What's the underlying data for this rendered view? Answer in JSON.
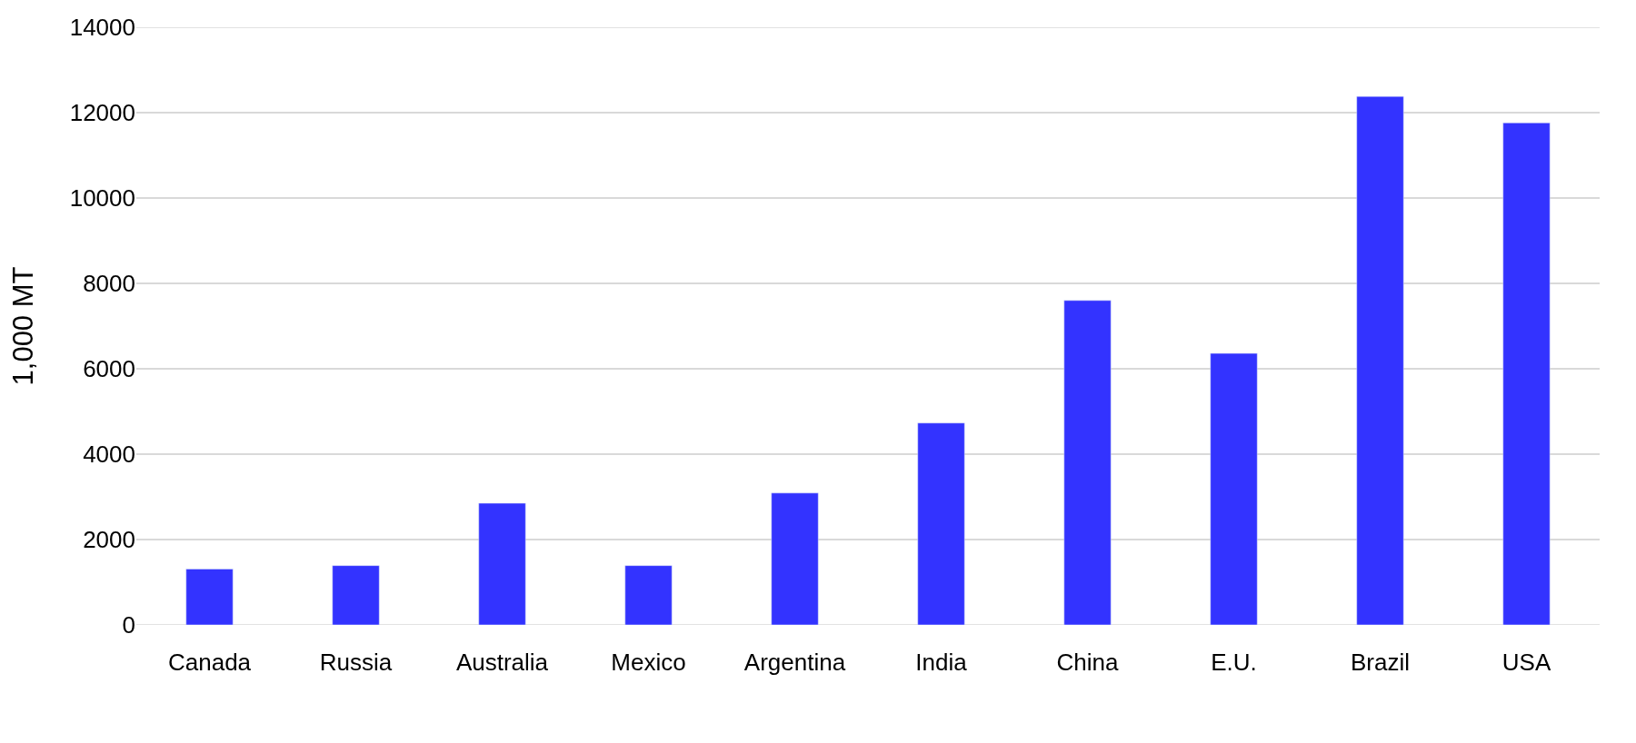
{
  "chart_data": {
    "type": "bar",
    "ylabel": "1,000 MT",
    "categories": [
      "Canada",
      "Russia",
      "Australia",
      "Mexico",
      "Argentina",
      "India",
      "China",
      "E.U.",
      "Brazil",
      "USA"
    ],
    "values": [
      1310,
      1390,
      2850,
      1390,
      3090,
      4730,
      7600,
      6360,
      12380,
      11760
    ],
    "color": "#3333ff",
    "ylim": [
      0,
      14000
    ],
    "yticks": [
      0,
      2000,
      4000,
      6000,
      8000,
      10000,
      12000,
      14000
    ],
    "grid": "y"
  }
}
